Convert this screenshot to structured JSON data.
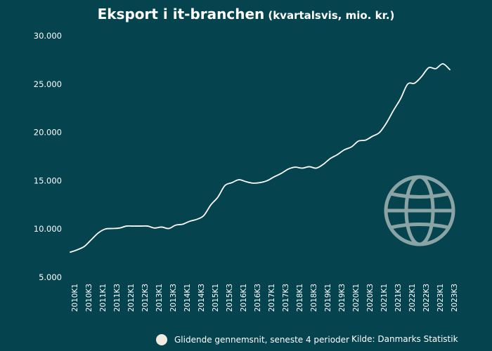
{
  "chart_data": {
    "type": "line",
    "title": "Eksport i it-branchen",
    "subtitle": "(kvartalsvis, mio. kr.)",
    "xlabel": "",
    "ylabel": "",
    "ylim": [
      5000,
      30000
    ],
    "y_ticks": [
      5000,
      10000,
      15000,
      20000,
      25000,
      30000
    ],
    "y_tick_labels": [
      "5.000",
      "10.000",
      "15.000",
      "20.000",
      "25.000",
      "30.000"
    ],
    "grid": false,
    "categories": [
      "2010K1",
      "2010K2",
      "2010K3",
      "2010K4",
      "2011K1",
      "2011K2",
      "2011K3",
      "2011K4",
      "2012K1",
      "2012K2",
      "2012K3",
      "2012K4",
      "2013K1",
      "2013K2",
      "2013K3",
      "2013K4",
      "2014K1",
      "2014K2",
      "2014K3",
      "2014K4",
      "2015K1",
      "2015K2",
      "2015K3",
      "2015K4",
      "2016K1",
      "2016K2",
      "2016K3",
      "2016K4",
      "2017K1",
      "2017K2",
      "2017K3",
      "2017K4",
      "2018K1",
      "2018K2",
      "2018K3",
      "2018K4",
      "2019K1",
      "2019K2",
      "2019K3",
      "2019K4",
      "2020K1",
      "2020K2",
      "2020K3",
      "2020K4",
      "2021K1",
      "2021K2",
      "2021K3",
      "2021K4",
      "2022K1",
      "2022K2",
      "2022K3",
      "2022K4",
      "2023K1",
      "2023K2",
      "2023K3"
    ],
    "x_tick_labels": [
      "2010K1",
      "2010K3",
      "2011K1",
      "2011K3",
      "2012K1",
      "2012K3",
      "2013K1",
      "2013K3",
      "2014K1",
      "2014K3",
      "2015K1",
      "2015K3",
      "2016K1",
      "2016K3",
      "2017K1",
      "2017K3",
      "2018K1",
      "2018K3",
      "2019K1",
      "2019K3",
      "2020K1",
      "2020K3",
      "2021K1",
      "2021K3",
      "2022K1",
      "2022K3",
      "2023K1",
      "2023K3"
    ],
    "series": [
      {
        "name": "Glidende gennemsnit, seneste 4 perioder",
        "color": "#ffffff",
        "values": [
          7600,
          7850,
          8200,
          8900,
          9600,
          10000,
          10050,
          10100,
          10300,
          10300,
          10300,
          10300,
          10100,
          10200,
          10050,
          10400,
          10500,
          10800,
          11000,
          11400,
          12500,
          13300,
          14500,
          14800,
          15100,
          14900,
          14750,
          14800,
          15000,
          15400,
          15750,
          16200,
          16400,
          16300,
          16450,
          16300,
          16700,
          17300,
          17700,
          18200,
          18500,
          19100,
          19200,
          19600,
          20000,
          21000,
          22300,
          23500,
          25000,
          25100,
          25800,
          26700,
          26600,
          27100,
          26500
        ]
      }
    ],
    "legend": {
      "label": "Glidende gennemsnit, seneste 4 perioder",
      "position": "bottom"
    },
    "source": "Kilde: Danmarks Statistik",
    "icon": "globe-icon",
    "colors": {
      "background": "#05434f",
      "line": "#ffffff",
      "icon": "#8aa3a5",
      "legend_marker": "#f1ebe0"
    }
  }
}
